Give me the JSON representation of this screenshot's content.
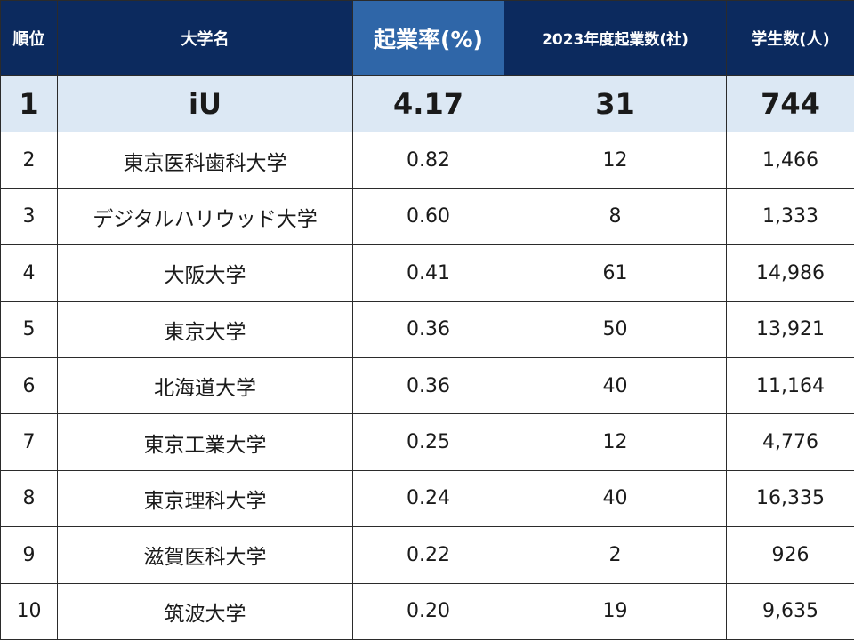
{
  "table": {
    "headers": {
      "rank": "順位",
      "name": "大学名",
      "rate": "起業率(%)",
      "startups": "2023年度起業数(社)",
      "students": "学生数(人)"
    },
    "rows": [
      {
        "rank": "1",
        "name": "iU",
        "rate": "4.17",
        "startups": "31",
        "students": "744"
      },
      {
        "rank": "2",
        "name": "東京医科歯科大学",
        "rate": "0.82",
        "startups": "12",
        "students": "1,466"
      },
      {
        "rank": "3",
        "name": "デジタルハリウッド大学",
        "rate": "0.60",
        "startups": "8",
        "students": "1,333"
      },
      {
        "rank": "4",
        "name": "大阪大学",
        "rate": "0.41",
        "startups": "61",
        "students": "14,986"
      },
      {
        "rank": "5",
        "name": "東京大学",
        "rate": "0.36",
        "startups": "50",
        "students": "13,921"
      },
      {
        "rank": "6",
        "name": "北海道大学",
        "rate": "0.36",
        "startups": "40",
        "students": "11,164"
      },
      {
        "rank": "7",
        "name": "東京工業大学",
        "rate": "0.25",
        "startups": "12",
        "students": "4,776"
      },
      {
        "rank": "8",
        "name": "東京理科大学",
        "rate": "0.24",
        "startups": "40",
        "students": "16,335"
      },
      {
        "rank": "9",
        "name": "滋賀医科大学",
        "rate": "0.22",
        "startups": "2",
        "students": "926"
      },
      {
        "rank": "10",
        "name": "筑波大学",
        "rate": "0.20",
        "startups": "19",
        "students": "9,635"
      }
    ]
  },
  "colors": {
    "header_bg": "#0c2a5e",
    "highlight_header_bg": "#2f66a8",
    "top_row_bg": "#dce8f4",
    "border": "#2b2b2b"
  }
}
